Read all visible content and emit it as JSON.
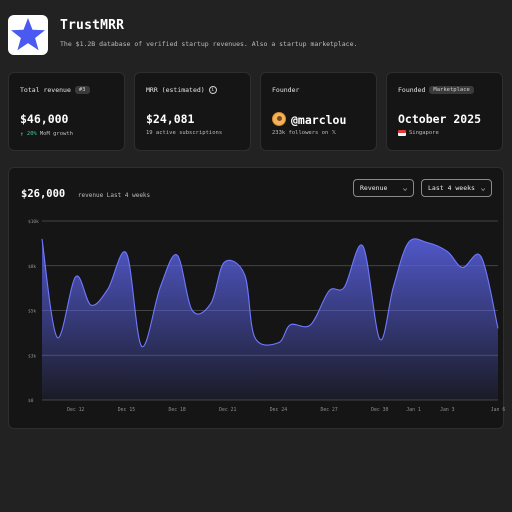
{
  "app": {
    "title": "TrustMRR",
    "subtitle": "The $1.2B database of verified startup revenues. Also a startup marketplace.",
    "logo_icon": "star-icon",
    "logo_color": "#4a5af0"
  },
  "cards": {
    "revenue": {
      "label": "Total revenue",
      "badge": "#3",
      "value": "$46,000",
      "growth_pct": "20%",
      "growth_text": "MoM growth",
      "growth_icon": "up-arrow-icon"
    },
    "mrr": {
      "label": "MRR (estimated)",
      "info_icon": "i",
      "value": "$24,081",
      "sub": "19 active subscriptions"
    },
    "founder": {
      "label": "Founder",
      "handle": "@marclou",
      "followers": "233k followers on 𝕏"
    },
    "founded": {
      "label": "Founded",
      "badge": "Marketplace",
      "value": "October 2025",
      "location": "Singapore"
    }
  },
  "chart": {
    "total": "$26,000",
    "caption": "revenue Last 4 weeks",
    "metric_select": "Revenue",
    "range_select": "Last 4 weeks",
    "chevron": "⌄",
    "accent": "#5b63e8",
    "gridline": "#555555"
  },
  "chart_data": {
    "type": "area",
    "y_ticks": [
      "$0",
      "$3k",
      "$5k",
      "$8k",
      "$10k"
    ],
    "ylim": [
      0,
      10000
    ],
    "x_ticks": [
      {
        "label": "Dec 12",
        "x": 2
      },
      {
        "label": "Dec 15",
        "x": 5
      },
      {
        "label": "Dec 18",
        "x": 8
      },
      {
        "label": "Dec 21",
        "x": 11
      },
      {
        "label": "Dec 24",
        "x": 14
      },
      {
        "label": "Dec 27",
        "x": 17
      },
      {
        "label": "Dec 30",
        "x": 20
      },
      {
        "label": "Jan 1",
        "x": 22
      },
      {
        "label": "Jan 3",
        "x": 24
      },
      {
        "label": "Jan 6",
        "x": 27
      }
    ],
    "xlim": [
      0,
      27
    ],
    "x": [
      0,
      0.9,
      2,
      2.9,
      3.9,
      5,
      5.9,
      7,
      8,
      8.9,
      10,
      10.8,
      12,
      12.6,
      14,
      14.7,
      15.9,
      17,
      17.9,
      19,
      20,
      20.8,
      21.7,
      22.8,
      24,
      24.9,
      26,
      27
    ],
    "values": [
      9000,
      3500,
      6900,
      5300,
      6200,
      8200,
      3000,
      6300,
      8100,
      5000,
      5400,
      7700,
      7000,
      3500,
      3200,
      4200,
      4200,
      6100,
      6300,
      8600,
      3400,
      6300,
      8800,
      8800,
      8300,
      7400,
      8000,
      4000
    ]
  }
}
